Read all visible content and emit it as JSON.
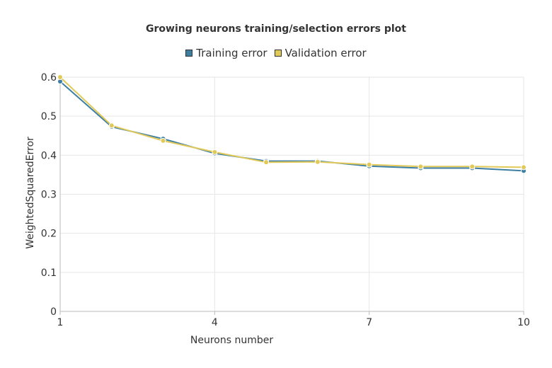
{
  "chart_data": {
    "type": "line",
    "title": "Growing neurons training/selection errors plot",
    "xlabel": "Neurons number",
    "ylabel": "WeightedSquaredError",
    "xlim": [
      1,
      10
    ],
    "ylim": [
      0,
      0.6
    ],
    "xticks": [
      "1",
      "4",
      "7",
      "10"
    ],
    "yticks": [
      "0",
      "0.1",
      "0.2",
      "0.3",
      "0.4",
      "0.5",
      "0.6"
    ],
    "grid": true,
    "legend_position": "top-center",
    "x": [
      1,
      2,
      3,
      4,
      5,
      6,
      7,
      8,
      9,
      10
    ],
    "series": [
      {
        "name": "Training error",
        "color": "#3d7fa3",
        "values": [
          0.589,
          0.473,
          0.442,
          0.405,
          0.385,
          0.385,
          0.372,
          0.367,
          0.367,
          0.36
        ]
      },
      {
        "name": "Validation error",
        "color": "#e1c95a",
        "values": [
          0.6,
          0.476,
          0.437,
          0.408,
          0.382,
          0.383,
          0.376,
          0.371,
          0.371,
          0.369
        ]
      }
    ]
  }
}
